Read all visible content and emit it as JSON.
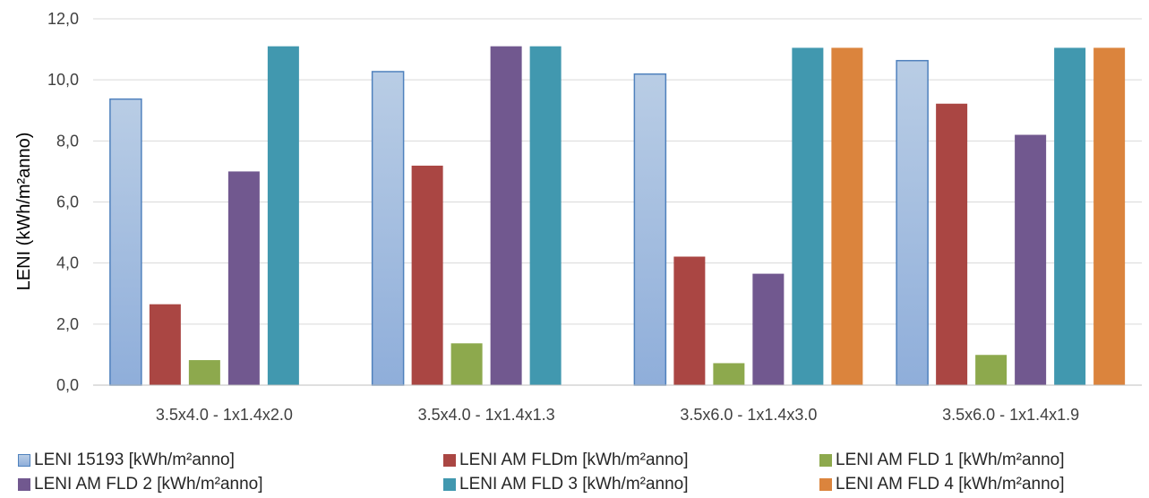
{
  "chart_data": {
    "type": "bar",
    "title": "",
    "xlabel": "",
    "ylabel": "LENI (kWh/m²anno)",
    "ylim": [
      0,
      12
    ],
    "ytick_step": 2,
    "ytick_labels": [
      "0,0",
      "2,0",
      "4,0",
      "6,0",
      "8,0",
      "10,0",
      "12,0"
    ],
    "grid": true,
    "legend_position": "bottom",
    "categories": [
      "3.5x4.0 - 1x1.4x2.0",
      "3.5x4.0 - 1x1.4x1.3",
      "3.5x6.0 - 1x1.4x3.0",
      "3.5x6.0 - 1x1.4x1.9"
    ],
    "series": [
      {
        "name": "LENI 15193 [kWh/m²anno]",
        "color": "#95B3D7",
        "values": [
          9.37,
          10.27,
          10.19,
          10.63
        ]
      },
      {
        "name": "LENI AM FLDm [kWh/m²anno]",
        "color": "#AA4643",
        "values": [
          2.65,
          7.19,
          4.21,
          9.22
        ]
      },
      {
        "name": "LENI AM FLD 1 [kWh/m²anno]",
        "color": "#8DA94D",
        "values": [
          0.82,
          1.37,
          0.72,
          0.99
        ]
      },
      {
        "name": "LENI AM FLD 2 [kWh/m²anno]",
        "color": "#71588F",
        "values": [
          7.0,
          11.1,
          3.65,
          8.2
        ]
      },
      {
        "name": "LENI AM FLD 3 [kWh/m²anno]",
        "color": "#4198AF",
        "values": [
          11.1,
          11.1,
          11.05,
          11.05
        ]
      },
      {
        "name": "LENI AM FLD 4 [kWh/m²anno]",
        "color": "#DB843D",
        "values": [
          null,
          null,
          11.05,
          11.05
        ]
      }
    ]
  }
}
